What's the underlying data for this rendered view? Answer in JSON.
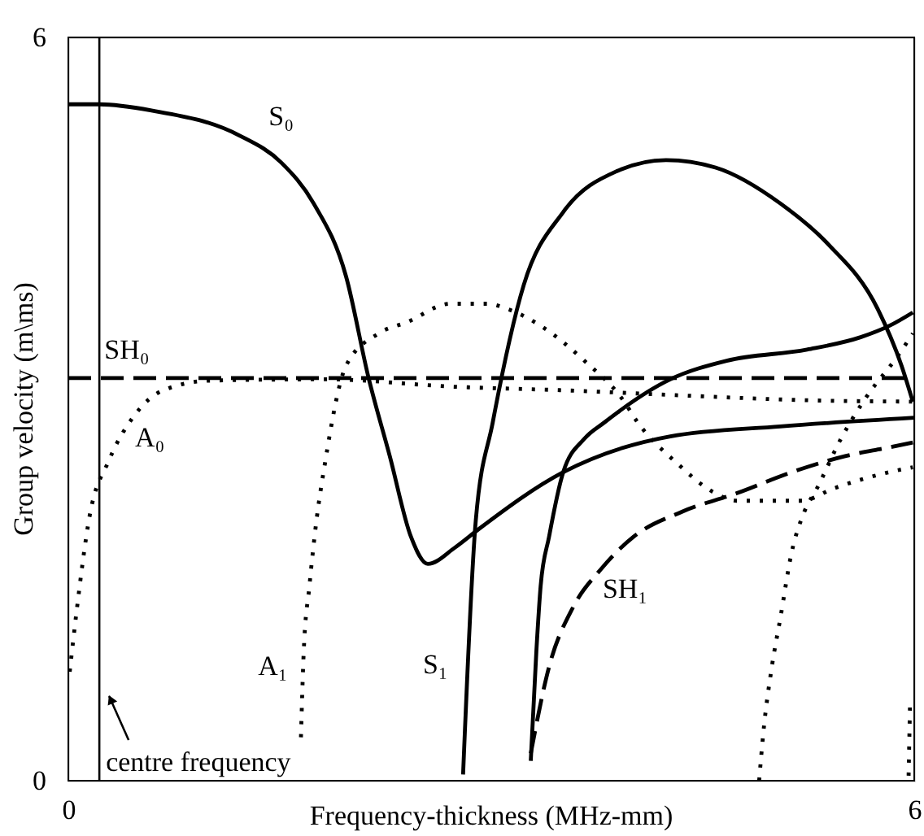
{
  "chart_data": {
    "type": "line",
    "xlabel": "Frequency-thickness (MHz-mm)",
    "ylabel": "Group velocity (m\\ms)",
    "xlim": [
      0,
      6
    ],
    "ylim": [
      0,
      6
    ],
    "xticks": [
      0,
      6
    ],
    "yticks": [
      0,
      6
    ],
    "legend": false,
    "marker": "none",
    "series": [
      {
        "name": "S₀",
        "color": "#000000",
        "line_style": "solid",
        "x": [
          0,
          0.22,
          0.59,
          1.21,
          1.51,
          1.74,
          1.97,
          2.13,
          2.28,
          2.43,
          2.55,
          2.74,
          2.91,
          3.51,
          4.27,
          5.05,
          6.0
        ],
        "values": [
          5.46,
          5.46,
          5.41,
          5.21,
          4.99,
          4.66,
          4.07,
          3.25,
          2.62,
          1.97,
          1.75,
          1.88,
          2.03,
          2.49,
          2.78,
          2.86,
          2.93
        ]
      },
      {
        "name": "S₁",
        "color": "#000000",
        "line_style": "solid",
        "x": [
          2.8,
          2.89,
          3.01,
          3.23,
          3.51,
          3.89,
          4.24,
          4.59,
          5.05,
          5.39,
          5.74,
          5.91,
          5.99
        ],
        "values": [
          0.05,
          2.1,
          2.89,
          4.0,
          4.59,
          4.92,
          5.01,
          4.95,
          4.66,
          4.33,
          3.81,
          3.35,
          3.06
        ]
      },
      {
        "color": "#000000",
        "line_style": "solid",
        "x": [
          3.28,
          3.32,
          3.35,
          3.41,
          3.51,
          3.66,
          3.8,
          4.27,
          4.67,
          5.24,
          5.62,
          5.82,
          5.99
        ],
        "values": [
          0.16,
          1.05,
          1.57,
          1.97,
          2.49,
          2.76,
          2.89,
          3.24,
          3.39,
          3.48,
          3.58,
          3.67,
          3.78
        ]
      },
      {
        "name": "SH₀",
        "color": "#000000",
        "line_style": "dashed",
        "x": [
          0,
          6
        ],
        "values": [
          3.25,
          3.25
        ]
      },
      {
        "name": "A₀",
        "color": "#000000",
        "line_style": "dotted",
        "x": [
          0.01,
          0.06,
          0.15,
          0.29,
          0.47,
          0.67,
          1.01,
          1.82,
          2.74,
          3.55,
          4.35,
          5.28,
          5.99
        ],
        "values": [
          0.88,
          1.38,
          2.13,
          2.59,
          2.95,
          3.15,
          3.23,
          3.24,
          3.18,
          3.15,
          3.11,
          3.07,
          3.06
        ]
      },
      {
        "name": "A₁",
        "color": "#000000",
        "line_style": "dotted",
        "x": [
          1.65,
          1.67,
          1.71,
          1.76,
          1.82,
          1.97,
          2.2,
          2.4,
          2.71,
          2.97,
          3.11,
          3.38,
          3.66,
          3.93,
          4.04,
          4.32,
          4.59,
          4.74,
          5.2,
          5.43,
          5.82,
          5.99
        ],
        "values": [
          0.35,
          1.05,
          1.57,
          2.1,
          2.56,
          3.35,
          3.61,
          3.7,
          3.85,
          3.85,
          3.81,
          3.65,
          3.39,
          3.08,
          2.89,
          2.56,
          2.32,
          2.26,
          2.26,
          2.36,
          2.49,
          2.53
        ]
      },
      {
        "color": "#000000",
        "line_style": "dotted",
        "x": [
          4.9,
          4.93,
          4.99,
          5.05,
          5.13,
          5.22,
          5.31,
          5.48,
          5.65,
          5.89,
          5.99
        ],
        "values": [
          0.0,
          0.39,
          0.92,
          1.31,
          1.84,
          2.17,
          2.36,
          2.76,
          3.08,
          3.44,
          3.61
        ]
      },
      {
        "color": "#000000",
        "line_style": "dotted",
        "x": [
          5.96,
          5.97
        ],
        "values": [
          0.04,
          0.62
        ]
      },
      {
        "name": "SH₁",
        "color": "#000000",
        "line_style": "dashed",
        "x": [
          3.28,
          3.41,
          3.58,
          3.78,
          4.01,
          4.35,
          4.74,
          5.13,
          5.51,
          5.82,
          5.99
        ],
        "values": [
          0.22,
          0.92,
          1.4,
          1.71,
          1.97,
          2.17,
          2.32,
          2.49,
          2.62,
          2.69,
          2.73
        ]
      }
    ],
    "ref_lines": [
      {
        "axis": "x",
        "value": 0.22,
        "label": "centre frequency",
        "color": "#000000"
      }
    ]
  }
}
